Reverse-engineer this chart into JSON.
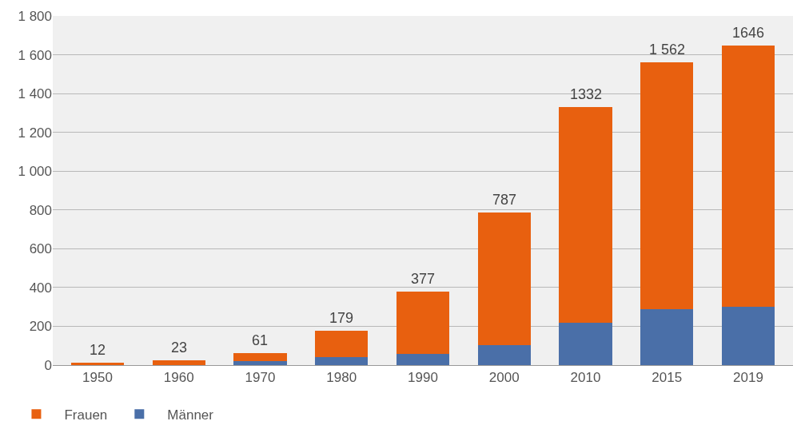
{
  "chart_data": {
    "type": "bar",
    "stacked": true,
    "categories": [
      "1950",
      "1960",
      "1970",
      "1980",
      "1990",
      "2000",
      "2010",
      "2015",
      "2019"
    ],
    "series": [
      {
        "name": "Männer",
        "color": "#4a6fa8",
        "values": [
          1,
          2,
          20,
          42,
          58,
          105,
          219,
          289,
          300
        ]
      },
      {
        "name": "Frauen",
        "color": "#e8600f",
        "values": [
          11,
          21,
          41,
          137,
          319,
          682,
          1113,
          1273,
          1346
        ]
      }
    ],
    "totals": [
      "12",
      "23",
      "61",
      "179",
      "377",
      "787",
      "1332",
      "1 562",
      "1646"
    ],
    "ylim": [
      0,
      1800
    ],
    "yticks": [
      0,
      200,
      400,
      600,
      800,
      {
        "value": 1000,
        "label": "1 000"
      },
      {
        "value": 1200,
        "label": "1 200"
      },
      {
        "value": 1400,
        "label": "1 400"
      },
      {
        "value": 1600,
        "label": "1 600"
      },
      {
        "value": 1800,
        "label": "1 800"
      }
    ],
    "grid": "y",
    "legend": "bottom left"
  }
}
